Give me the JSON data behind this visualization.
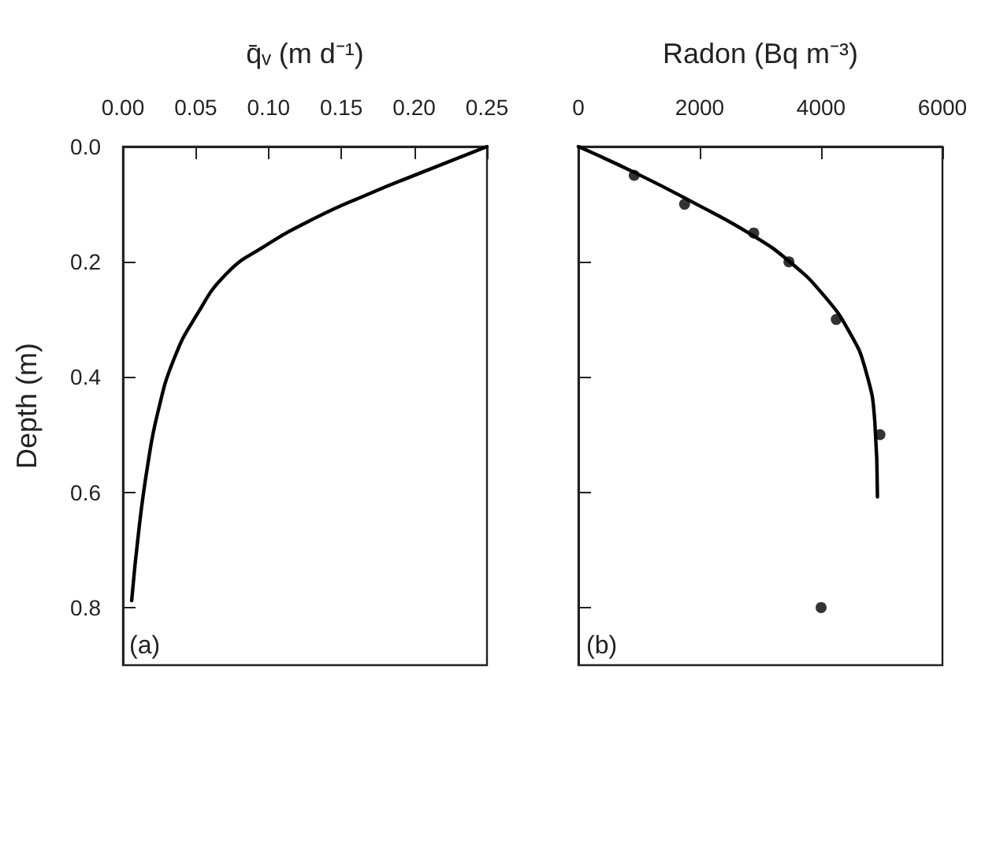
{
  "chart_data": [
    {
      "type": "line",
      "xlabel": "q̄ᵥ (m d⁻¹)",
      "ylabel": "Depth (m)",
      "annotations": [
        "(a)"
      ],
      "xlim": [
        0,
        0.25
      ],
      "xticks": [
        {
          "value": 0,
          "label": "0.00"
        },
        {
          "value": 0.05,
          "label": "0.05"
        },
        {
          "value": 0.1,
          "label": "0.10"
        },
        {
          "value": 0.15,
          "label": "0.15"
        },
        {
          "value": 0.2,
          "label": "0.20"
        },
        {
          "value": 0.25,
          "label": "0.25"
        }
      ],
      "ylim": [
        0.9,
        0
      ],
      "yticks": [
        {
          "value": 0,
          "label": "0.0"
        },
        {
          "value": 0.2,
          "label": "0.2"
        },
        {
          "value": 0.4,
          "label": "0.4"
        },
        {
          "value": 0.6,
          "label": "0.6"
        },
        {
          "value": 0.8,
          "label": "0.8"
        }
      ],
      "grid": false,
      "series": [
        {
          "color": "#000000",
          "marker": "none",
          "line_style": "solid",
          "x": [
            0.25,
            0.204,
            0.168,
            0.132,
            0.096,
            0.071,
            0.05,
            0.035,
            0.024,
            0.017,
            0.011,
            0.006
          ],
          "values": [
            0,
            0.046,
            0.083,
            0.124,
            0.175,
            0.221,
            0.295,
            0.369,
            0.461,
            0.553,
            0.664,
            0.788
          ]
        }
      ]
    },
    {
      "type": "line",
      "xlabel": "Radon (Bq m⁻³)",
      "annotations": [
        "(b)"
      ],
      "xlim": [
        0,
        6000
      ],
      "xticks": [
        0,
        2000,
        4000,
        6000
      ],
      "ylim": [
        0.9,
        0
      ],
      "yticks": [
        0,
        0.2,
        0.4,
        0.6,
        0.8
      ],
      "tick_labels": "x",
      "grid": false,
      "series": [
        {
          "color": "#000000",
          "marker": "none",
          "line_style": "solid",
          "x": [
            0,
            946,
            1892,
            2839,
            3484,
            4043,
            4473,
            4731,
            4886,
            4929
          ],
          "values": [
            0,
            0.046,
            0.097,
            0.152,
            0.2,
            0.258,
            0.323,
            0.387,
            0.479,
            0.608
          ]
        },
        {
          "type": "scatter",
          "color": "#000000",
          "marker": "circle",
          "x": [
            920,
            1750,
            2890,
            3470,
            4250,
            4970,
            4000
          ],
          "values": [
            0.05,
            0.1,
            0.15,
            0.2,
            0.3,
            0.5,
            0.8
          ]
        }
      ]
    }
  ]
}
